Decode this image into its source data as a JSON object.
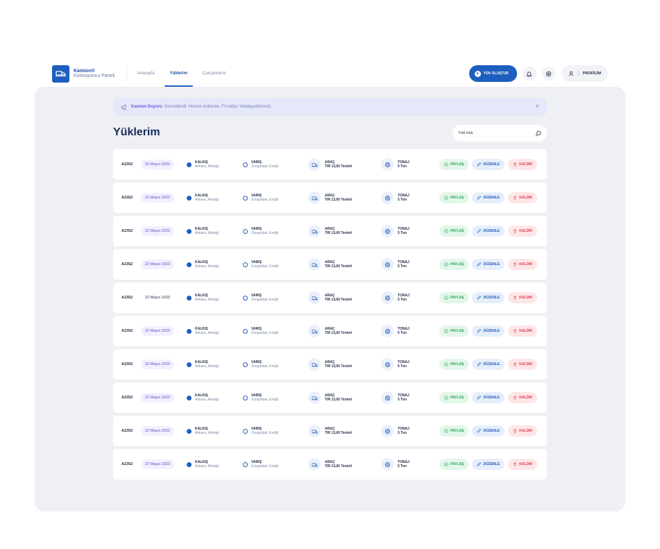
{
  "brand": {
    "name": "Kamion®",
    "subtitle": "Komisyoncu Paneli"
  },
  "nav": [
    {
      "label": "Anasayfa",
      "active": false
    },
    {
      "label": "Yüklerim",
      "active": true
    },
    {
      "label": "Çalışanlarım",
      "active": false
    }
  ],
  "header": {
    "create_label": "YÜK OLUŞTUR",
    "profile_label": "PROFİLİM"
  },
  "announcement": {
    "brand": "Kamion Duyuru",
    "text": "Güncellendi. Hemen İndirerek, Fırsatları Yakalayabilirsiniz."
  },
  "page": {
    "title": "Yüklerim"
  },
  "search": {
    "placeholder": "Yük Ara"
  },
  "labels": {
    "departure": "KALKIŞ",
    "arrival": "VARIŞ",
    "vehicle": "ARAÇ",
    "tonnage": "TONAJ",
    "share": "PAYLAŞ",
    "edit": "DÜZENLE",
    "remove": "KALDIR"
  },
  "colors": {
    "primary": "#1d5fbf",
    "panel": "#eef0f4",
    "share": "#2aa65c",
    "remove": "#e0384c",
    "date": "#5a4fc4"
  },
  "loads": [
    {
      "id": "A2352",
      "date": "22 Mayıs 2023",
      "date_highlight": true,
      "from": "Ankara, Alodağ",
      "to": "Zonguldak, Ereğli",
      "vehicle": "TIR 13,60 Tenteli",
      "tonnage": "5 Ton"
    },
    {
      "id": "A2352",
      "date": "22 Mayıs 2023",
      "date_highlight": true,
      "from": "Ankara, Alodağ",
      "to": "Zonguldak, Ereğli",
      "vehicle": "TIR 13,60 Tenteli",
      "tonnage": "5 Ton"
    },
    {
      "id": "A2352",
      "date": "22 Mayıs 2023",
      "date_highlight": true,
      "from": "Ankara, Alodağ",
      "to": "Zonguldak, Ereğli",
      "vehicle": "TIR 13,60 Tenteli",
      "tonnage": "5 Ton"
    },
    {
      "id": "A2352",
      "date": "22 Mayıs 2023",
      "date_highlight": true,
      "from": "Ankara, Alodağ",
      "to": "Zonguldak, Ereğli",
      "vehicle": "TIR 13,60 Tenteli",
      "tonnage": "5 Ton"
    },
    {
      "id": "A2352",
      "date": "22 Mayıs 2023",
      "date_highlight": false,
      "from": "Ankara, Alodağ",
      "to": "Zonguldak, Ereğli",
      "vehicle": "TIR 13,60 Tenteli",
      "tonnage": "5 Ton"
    },
    {
      "id": "A2352",
      "date": "22 Mayıs 2023",
      "date_highlight": true,
      "from": "Ankara, Alodağ",
      "to": "Zonguldak, Ereğli",
      "vehicle": "TIR 13,60 Tenteli",
      "tonnage": "5 Ton"
    },
    {
      "id": "A2352",
      "date": "22 Mayıs 2023",
      "date_highlight": true,
      "from": "Ankara, Alodağ",
      "to": "Zonguldak, Ereğli",
      "vehicle": "TIR 13,60 Tenteli",
      "tonnage": "5 Ton"
    },
    {
      "id": "A2352",
      "date": "22 Mayıs 2023",
      "date_highlight": true,
      "from": "Ankara, Alodağ",
      "to": "Zonguldak, Ereğli",
      "vehicle": "TIR 13,60 Tenteli",
      "tonnage": "5 Ton"
    },
    {
      "id": "A2352",
      "date": "22 Mayıs 2023",
      "date_highlight": true,
      "from": "Ankara, Alodağ",
      "to": "Zonguldak, Ereğli",
      "vehicle": "TIR 13,60 Tenteli",
      "tonnage": "5 Ton"
    },
    {
      "id": "A2352",
      "date": "22 Mayıs 2023",
      "date_highlight": true,
      "from": "Ankara, Alodağ",
      "to": "Zonguldak, Ereğli",
      "vehicle": "TIR 13,60 Tenteli",
      "tonnage": "5 Ton"
    }
  ]
}
